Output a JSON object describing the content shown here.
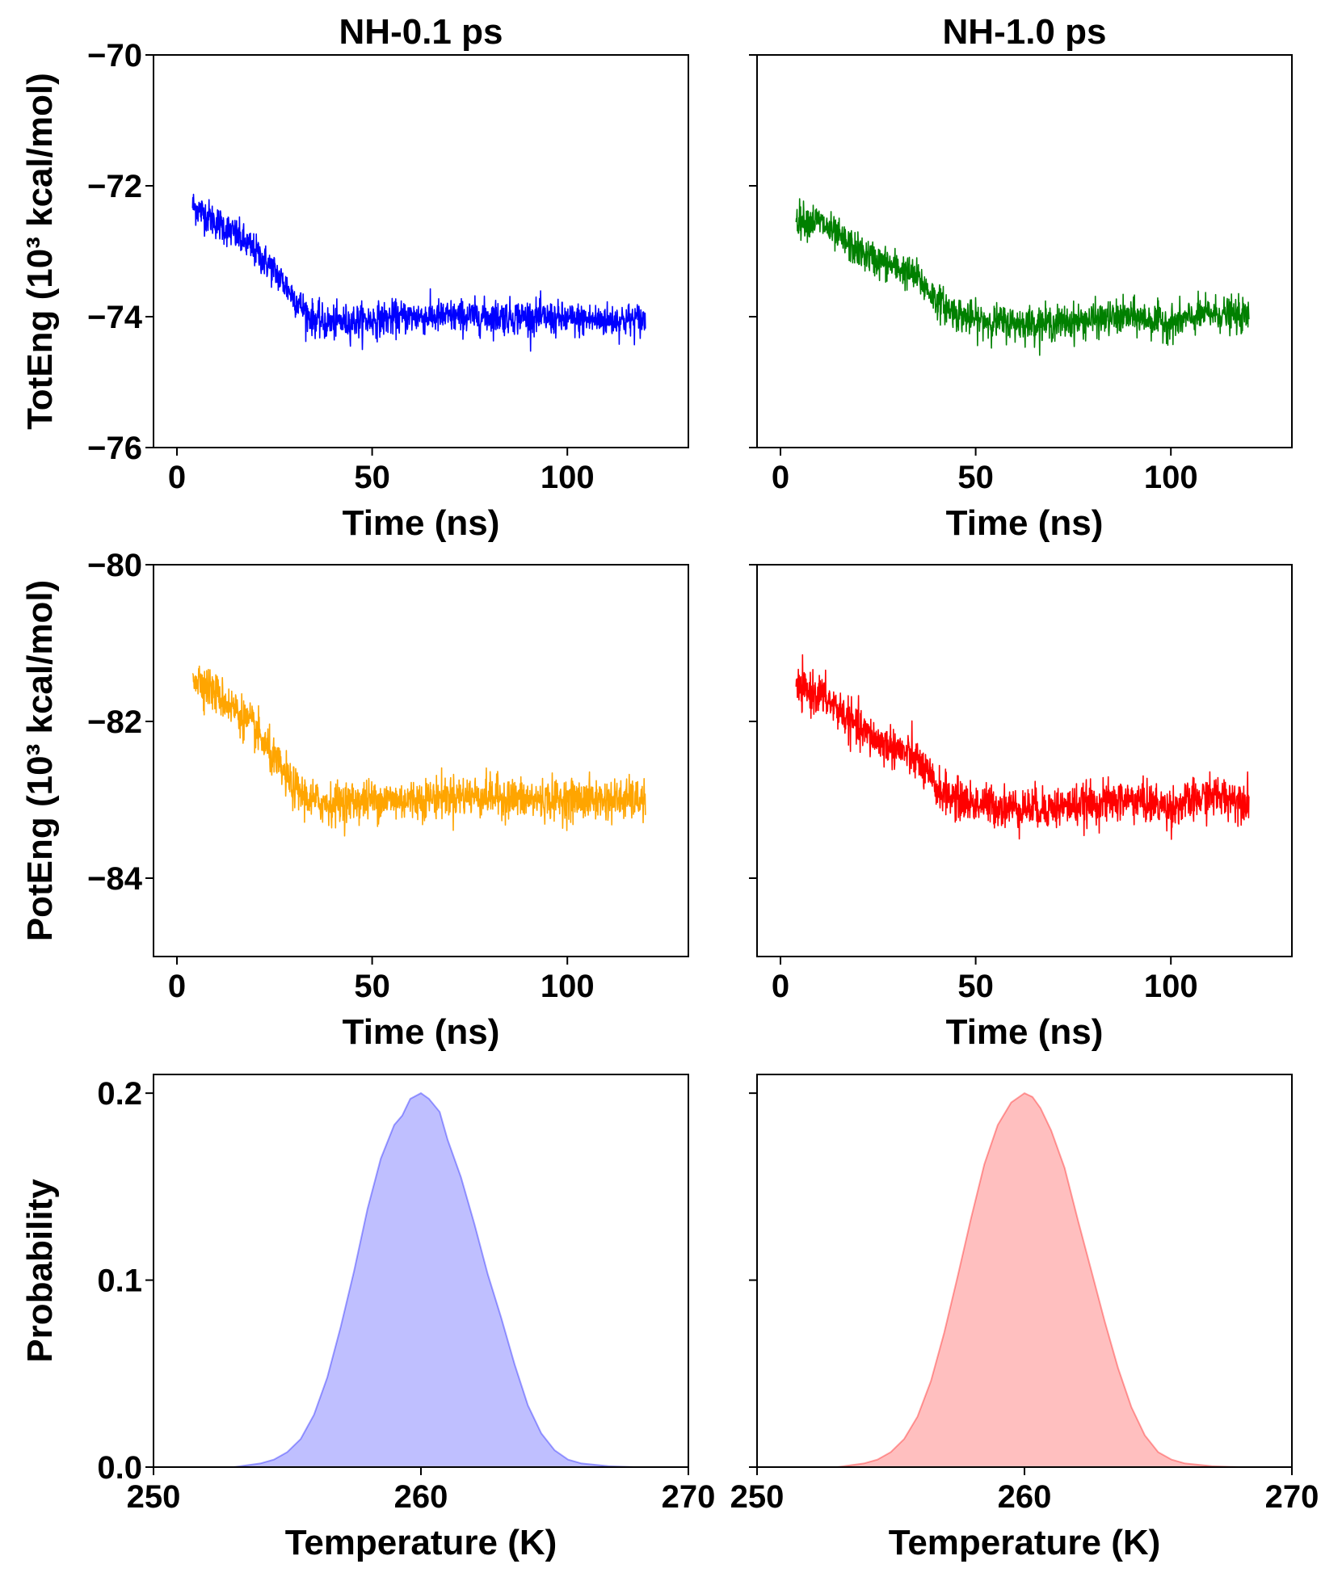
{
  "chart_data": [
    {
      "type": "line",
      "title": "NH-0.1 ps",
      "xlabel": "Time (ns)",
      "ylabel": "TotEng (10³ kcal/mol)",
      "xlim": [
        -6,
        131
      ],
      "ylim": [
        -76,
        -70
      ],
      "xticks": [
        0,
        50,
        100
      ],
      "yticks": [
        -76,
        -74,
        -72,
        -70
      ],
      "ytick_labels": [
        "−76",
        "−74",
        "−72",
        "−70"
      ],
      "color": "#0000ff",
      "series": [
        {
          "x": [
            4,
            10,
            15,
            20,
            25,
            30,
            34,
            38,
            50,
            60,
            70,
            80,
            90,
            100,
            110,
            120
          ],
          "values": [
            -72.3,
            -72.55,
            -72.75,
            -73.0,
            -73.3,
            -73.7,
            -74.0,
            -74.1,
            -74.05,
            -74.0,
            -74.0,
            -74.0,
            -74.0,
            -74.05,
            -74.05,
            -74.05
          ]
        }
      ]
    },
    {
      "type": "line",
      "title": "NH-1.0 ps",
      "xlabel": "Time (ns)",
      "ylabel": "",
      "xlim": [
        -6,
        131
      ],
      "ylim": [
        -76,
        -70
      ],
      "xticks": [
        0,
        50,
        100
      ],
      "yticks": [
        -76,
        -74,
        -72,
        -70
      ],
      "ytick_labels": [
        "",
        "",
        "",
        ""
      ],
      "color": "#008000",
      "series": [
        {
          "x": [
            4,
            10,
            15,
            20,
            25,
            30,
            35,
            40,
            45,
            50,
            60,
            70,
            80,
            90,
            100,
            110,
            120
          ],
          "values": [
            -72.5,
            -72.55,
            -72.8,
            -73.0,
            -73.15,
            -73.25,
            -73.4,
            -73.75,
            -73.95,
            -74.05,
            -74.1,
            -74.1,
            -74.05,
            -74.0,
            -74.1,
            -73.95,
            -74.0
          ]
        }
      ]
    },
    {
      "type": "line",
      "title": "",
      "xlabel": "Time (ns)",
      "ylabel": "PotEng (10³ kcal/mol)",
      "xlim": [
        -6,
        131
      ],
      "ylim": [
        -85.0,
        -80.0
      ],
      "xticks": [
        0,
        50,
        100
      ],
      "yticks": [
        -84,
        -82,
        -80
      ],
      "ytick_labels": [
        "−84",
        "−82",
        "−80"
      ],
      "color": "#ffa500",
      "series": [
        {
          "x": [
            4,
            10,
            15,
            20,
            25,
            30,
            34,
            38,
            50,
            60,
            70,
            80,
            90,
            100,
            110,
            120
          ],
          "values": [
            -81.4,
            -81.65,
            -81.85,
            -82.1,
            -82.5,
            -82.85,
            -83.0,
            -83.05,
            -83.0,
            -83.0,
            -82.95,
            -82.95,
            -83.0,
            -83.0,
            -83.0,
            -83.0
          ]
        }
      ]
    },
    {
      "type": "line",
      "title": "",
      "xlabel": "Time (ns)",
      "ylabel": "",
      "xlim": [
        -6,
        131
      ],
      "ylim": [
        -85.0,
        -80.0
      ],
      "xticks": [
        0,
        50,
        100
      ],
      "yticks": [
        -84,
        -82,
        -80
      ],
      "ytick_labels": [
        "",
        "",
        ""
      ],
      "color": "#ff0000",
      "series": [
        {
          "x": [
            4,
            10,
            15,
            20,
            25,
            30,
            35,
            40,
            45,
            50,
            60,
            70,
            80,
            90,
            100,
            110,
            120
          ],
          "values": [
            -81.6,
            -81.65,
            -81.85,
            -82.1,
            -82.25,
            -82.35,
            -82.5,
            -82.85,
            -83.0,
            -83.05,
            -83.1,
            -83.1,
            -83.05,
            -83.0,
            -83.1,
            -82.95,
            -83.0
          ]
        }
      ]
    },
    {
      "type": "area",
      "title": "",
      "xlabel": "Temperature (K)",
      "ylabel": "Probability",
      "xlim": [
        250,
        270
      ],
      "ylim": [
        0,
        0.21
      ],
      "xticks": [
        250,
        260,
        270
      ],
      "yticks": [
        0.0,
        0.1,
        0.2
      ],
      "ytick_labels": [
        "0.0",
        "0.1",
        "0.2"
      ],
      "color": "#0000ff",
      "series": [
        {
          "x": [
            253,
            254,
            254.5,
            255,
            255.5,
            256,
            256.5,
            257,
            257.5,
            258,
            258.5,
            259,
            259.3,
            259.6,
            260,
            260.3,
            260.7,
            261,
            261.5,
            262,
            262.5,
            263,
            263.5,
            264,
            264.5,
            265,
            265.5,
            266,
            267,
            268
          ],
          "values": [
            0.0,
            0.002,
            0.004,
            0.008,
            0.015,
            0.028,
            0.048,
            0.075,
            0.105,
            0.138,
            0.165,
            0.183,
            0.188,
            0.197,
            0.2,
            0.197,
            0.19,
            0.175,
            0.155,
            0.13,
            0.103,
            0.08,
            0.055,
            0.033,
            0.018,
            0.009,
            0.004,
            0.002,
            0.0005,
            0.0
          ]
        }
      ]
    },
    {
      "type": "area",
      "title": "",
      "xlabel": "Temperature (K)",
      "ylabel": "",
      "xlim": [
        250,
        270
      ],
      "ylim": [
        0,
        0.21
      ],
      "xticks": [
        250,
        260,
        270
      ],
      "yticks": [
        0.0,
        0.1,
        0.2
      ],
      "ytick_labels": [
        "",
        "",
        ""
      ],
      "color": "#ff0000",
      "series": [
        {
          "x": [
            253,
            254,
            254.5,
            255,
            255.5,
            256,
            256.5,
            257,
            257.5,
            258,
            258.5,
            259,
            259.5,
            260,
            260.3,
            260.6,
            261,
            261.5,
            262,
            262.5,
            263,
            263.5,
            264,
            264.5,
            265,
            265.5,
            266,
            267,
            268
          ],
          "values": [
            0.0,
            0.002,
            0.004,
            0.008,
            0.015,
            0.027,
            0.046,
            0.072,
            0.102,
            0.133,
            0.162,
            0.183,
            0.195,
            0.2,
            0.198,
            0.192,
            0.18,
            0.16,
            0.132,
            0.105,
            0.078,
            0.053,
            0.032,
            0.017,
            0.008,
            0.004,
            0.002,
            0.0005,
            0.0
          ]
        }
      ]
    }
  ]
}
